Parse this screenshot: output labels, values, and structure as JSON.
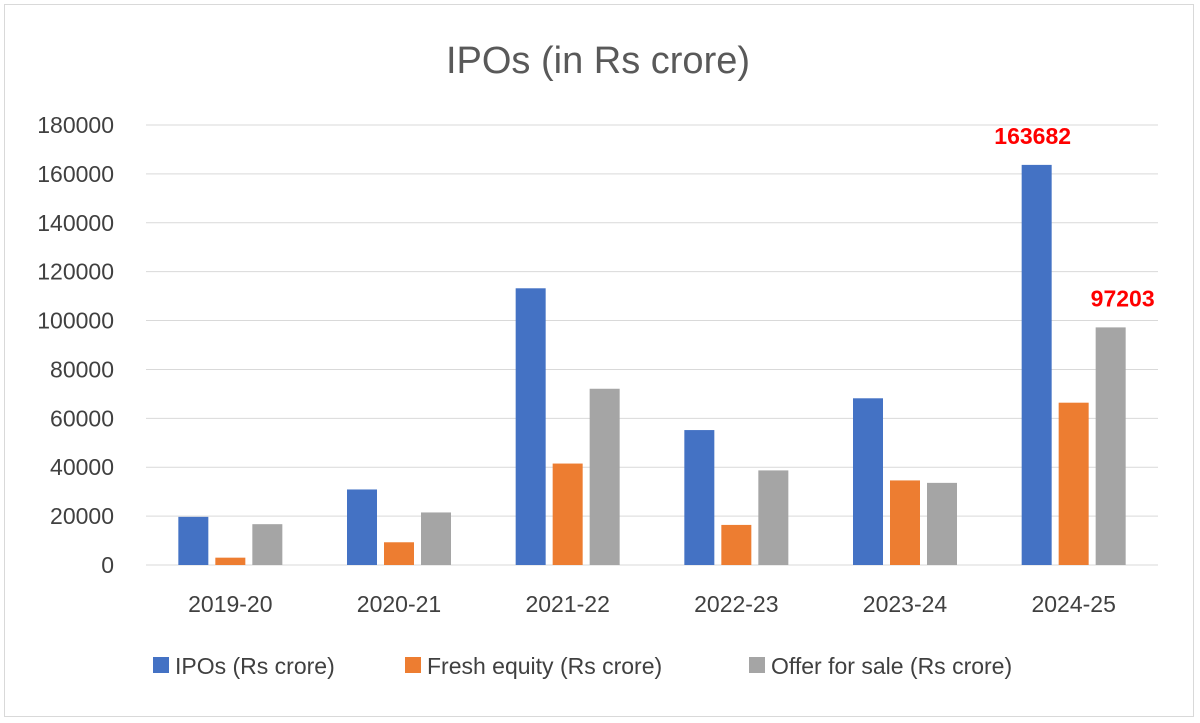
{
  "chart_data": {
    "type": "bar",
    "title": "IPOs (in Rs crore)",
    "categories": [
      "2019-20",
      "2020-21",
      "2021-22",
      "2022-23",
      "2023-24",
      "2024-25"
    ],
    "series": [
      {
        "name": "IPOs (Rs crore)",
        "color": "#4472C4",
        "values": [
          19700,
          30900,
          113200,
          55200,
          68200,
          163682
        ]
      },
      {
        "name": "Fresh equity (Rs crore)",
        "color": "#ED7D31",
        "values": [
          3000,
          9300,
          41500,
          16400,
          34600,
          66400
        ]
      },
      {
        "name": "Offer for sale (Rs crore)",
        "color": "#A5A5A5",
        "values": [
          16700,
          21500,
          72100,
          38700,
          33600,
          97203
        ]
      }
    ],
    "ylim": [
      0,
      180000
    ],
    "yticks": [
      "0",
      "20000",
      "40000",
      "60000",
      "80000",
      "100000",
      "120000",
      "140000",
      "160000",
      "180000"
    ],
    "ytick_values": [
      0,
      20000,
      40000,
      60000,
      80000,
      100000,
      120000,
      140000,
      160000,
      180000
    ],
    "xlabel": "",
    "ylabel": "",
    "grid": true,
    "legend_position": "bottom",
    "annotations": [
      {
        "text": "163682",
        "series": 0,
        "category": 5,
        "color": "#FF0000"
      },
      {
        "text": "97203",
        "series": 2,
        "category": 5,
        "color": "#FF0000"
      }
    ]
  }
}
